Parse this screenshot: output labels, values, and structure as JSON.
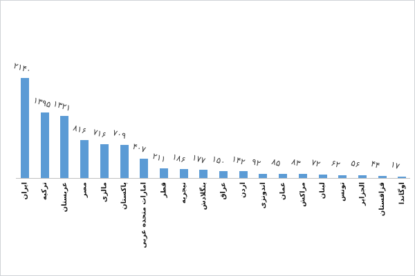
{
  "page": {
    "background": "#ffffff",
    "frame_border_color": "#cfd2d6"
  },
  "chart_data": {
    "type": "bar",
    "title": "",
    "xlabel": "",
    "ylabel": "",
    "grid": false,
    "legend": false,
    "ylim": [
      0,
      2200
    ],
    "bar_color": "#5b9bd5",
    "axis_line_color": "#bfbfbf",
    "value_label_color": "#404040",
    "category_label_color": "#1a1a1a",
    "value_label_rotation_deg": 17,
    "category_label_rotation_deg": -90,
    "categories": [
      "ایران",
      "ترکیه",
      "عربستان",
      "مصر",
      "مالزی",
      "پاکستان",
      "امارات متحده عربی",
      "قطر",
      "نیجریه",
      "بنگلادش",
      "عراق",
      "اردن",
      "اندونزی",
      "عمان",
      "مراکش",
      "لبنان",
      "تونس",
      "الجزایر",
      "قزاقستان",
      "اوگاندا"
    ],
    "category_slugs": [
      "iran",
      "turkey",
      "saudi-arabia",
      "egypt",
      "malaysia",
      "pakistan",
      "uae",
      "qatar",
      "nigeria",
      "bangladesh",
      "iraq",
      "jordan",
      "indonesia",
      "oman",
      "morocco",
      "lebanon",
      "tunisia",
      "algeria",
      "kazakhstan",
      "uganda"
    ],
    "values": [
      2140,
      1395,
      1321,
      816,
      716,
      709,
      407,
      211,
      186,
      177,
      150,
      142,
      92,
      85,
      83,
      72,
      62,
      56,
      44,
      17
    ],
    "value_labels_fa": [
      "۲۱۴۰",
      "۱۳۹۵",
      "۱۳۲۱",
      "۸۱۶",
      "۷۱۶",
      "۷۰۹",
      "۴۰۷",
      "۲۱۱",
      "۱۸۶",
      "۱۷۷",
      "۱۵۰",
      "۱۴۲",
      "۹۲",
      "۸۵",
      "۸۳",
      "۷۲",
      "۶۲",
      "۵۶",
      "۴۴",
      "۱۷"
    ]
  }
}
